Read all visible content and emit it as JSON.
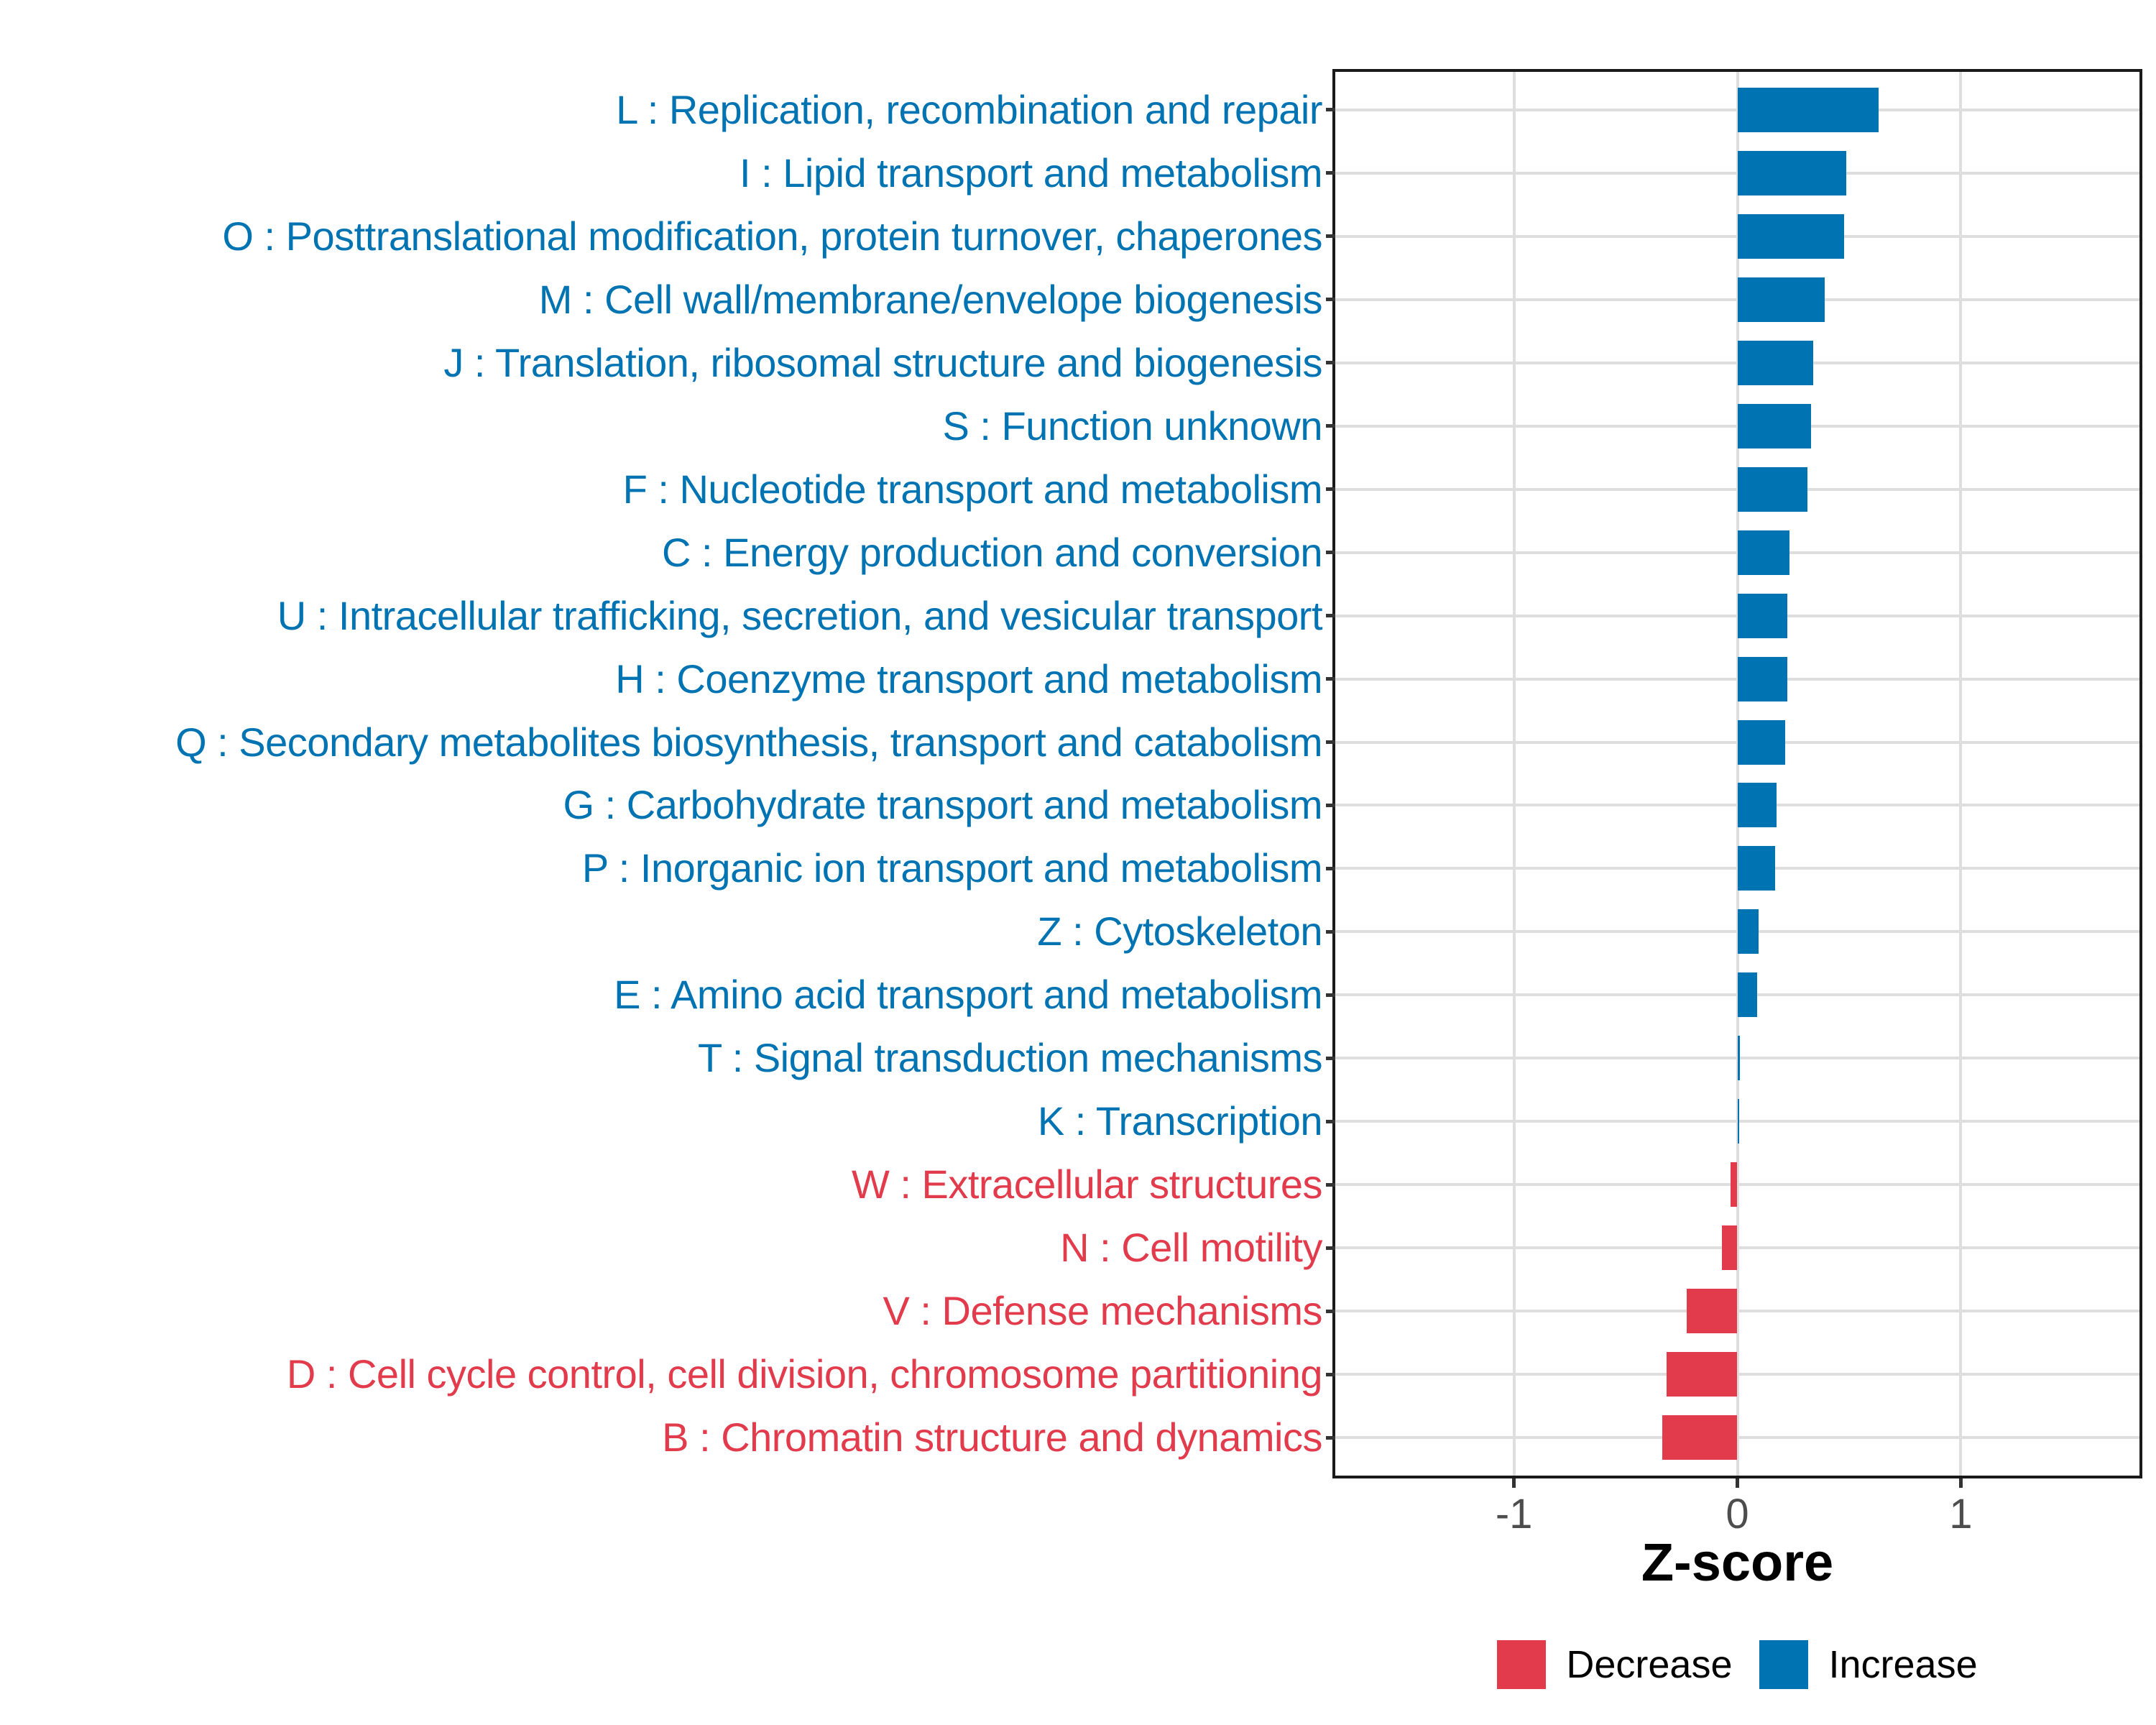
{
  "chart_data": {
    "type": "bar",
    "orientation": "horizontal",
    "title": "",
    "xlabel": "Z-score",
    "ylabel": "",
    "xlim": [
      -1.8,
      1.8
    ],
    "x_ticks": [
      -1,
      0,
      1
    ],
    "grid": true,
    "legend_position": "bottom",
    "colors": {
      "increase": "#0073B2",
      "decrease": "#E23B4C"
    },
    "legend": [
      {
        "label": "Decrease",
        "group": "Decrease"
      },
      {
        "label": "Increase",
        "group": "Increase"
      }
    ],
    "categories": [
      "L : Replication, recombination and repair",
      "I : Lipid transport and metabolism",
      "O : Posttranslational modification, protein turnover, chaperones",
      "M : Cell wall/membrane/envelope biogenesis",
      "J : Translation, ribosomal structure and biogenesis",
      "S : Function unknown",
      "F : Nucleotide transport and metabolism",
      "C : Energy production and conversion",
      "U : Intracellular trafficking, secretion, and vesicular transport",
      "H : Coenzyme transport and metabolism",
      "Q : Secondary metabolites biosynthesis, transport and catabolism",
      "G : Carbohydrate transport and metabolism",
      "P : Inorganic ion transport and metabolism",
      "Z : Cytoskeleton",
      "E : Amino acid transport and metabolism",
      "T : Signal transduction mechanisms",
      "K : Transcription",
      "W : Extracellular structures",
      "N : Cell motility",
      "V : Defense mechanisms",
      "D : Cell cycle control, cell division, chromosome partitioning",
      "B : Chromatin structure and dynamics"
    ],
    "values": [
      0.633,
      0.486,
      0.477,
      0.391,
      0.338,
      0.331,
      0.314,
      0.232,
      0.224,
      0.222,
      0.213,
      0.176,
      0.17,
      0.094,
      0.089,
      0.01,
      0.006,
      -0.031,
      -0.068,
      -0.227,
      -0.318,
      -0.337
    ],
    "groups": [
      "Increase",
      "Increase",
      "Increase",
      "Increase",
      "Increase",
      "Increase",
      "Increase",
      "Increase",
      "Increase",
      "Increase",
      "Increase",
      "Increase",
      "Increase",
      "Increase",
      "Increase",
      "Increase",
      "Increase",
      "Decrease",
      "Decrease",
      "Decrease",
      "Decrease",
      "Decrease"
    ]
  }
}
